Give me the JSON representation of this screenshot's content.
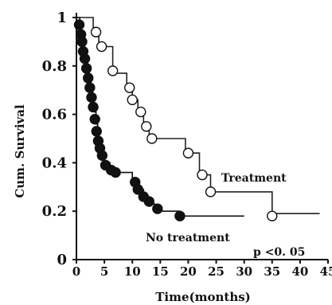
{
  "chart_data": {
    "type": "line",
    "xlabel": "Time(months)",
    "ylabel": "Cum. Survival",
    "xlim": [
      0,
      45
    ],
    "ylim": [
      0,
      1
    ],
    "x_ticks": [
      "0",
      "5",
      "10",
      "15",
      "20",
      "25",
      "30",
      "35",
      "40",
      "45"
    ],
    "y_ticks": [
      "0",
      "0.2",
      "0.4",
      "0.6",
      "0.8",
      "1"
    ],
    "grid": false,
    "series": [
      {
        "name": "Treatment",
        "marker": "open-circle",
        "color": "#222222",
        "step_points": [
          [
            0,
            1.0
          ],
          [
            3.0,
            1.0
          ],
          [
            3.0,
            0.94
          ],
          [
            4.0,
            0.94
          ],
          [
            4.0,
            0.88
          ],
          [
            6.5,
            0.88
          ],
          [
            6.5,
            0.77
          ],
          [
            9.0,
            0.77
          ],
          [
            9.0,
            0.71
          ],
          [
            10.0,
            0.71
          ],
          [
            10.0,
            0.66
          ],
          [
            11.0,
            0.66
          ],
          [
            11.0,
            0.6
          ],
          [
            12.0,
            0.6
          ],
          [
            12.0,
            0.55
          ],
          [
            13.0,
            0.55
          ],
          [
            13.0,
            0.5
          ],
          [
            19.5,
            0.5
          ],
          [
            19.5,
            0.44
          ],
          [
            22.0,
            0.44
          ],
          [
            22.0,
            0.35
          ],
          [
            24.0,
            0.35
          ],
          [
            24.0,
            0.28
          ],
          [
            35.0,
            0.28
          ],
          [
            35.0,
            0.19
          ],
          [
            43.5,
            0.19
          ]
        ],
        "markers": [
          [
            3.5,
            0.94
          ],
          [
            4.5,
            0.88
          ],
          [
            6.5,
            0.78
          ],
          [
            9.5,
            0.71
          ],
          [
            10.0,
            0.66
          ],
          [
            11.5,
            0.61
          ],
          [
            12.5,
            0.55
          ],
          [
            13.5,
            0.5
          ],
          [
            20.0,
            0.44
          ],
          [
            22.5,
            0.35
          ],
          [
            24.0,
            0.28
          ],
          [
            35.0,
            0.18
          ]
        ]
      },
      {
        "name": "No treatment",
        "marker": "filled-circle",
        "color": "#111111",
        "step_points": [
          [
            0,
            1.0
          ],
          [
            0.6,
            1.0
          ],
          [
            0.6,
            0.95
          ],
          [
            0.9,
            0.95
          ],
          [
            0.9,
            0.91
          ],
          [
            1.1,
            0.91
          ],
          [
            1.1,
            0.88
          ],
          [
            1.4,
            0.88
          ],
          [
            1.4,
            0.84
          ],
          [
            1.7,
            0.84
          ],
          [
            1.7,
            0.81
          ],
          [
            2.0,
            0.81
          ],
          [
            2.0,
            0.77
          ],
          [
            2.3,
            0.77
          ],
          [
            2.3,
            0.73
          ],
          [
            2.6,
            0.73
          ],
          [
            2.6,
            0.69
          ],
          [
            2.9,
            0.69
          ],
          [
            2.9,
            0.65
          ],
          [
            3.2,
            0.65
          ],
          [
            3.2,
            0.61
          ],
          [
            3.5,
            0.61
          ],
          [
            3.5,
            0.56
          ],
          [
            3.8,
            0.56
          ],
          [
            3.8,
            0.51
          ],
          [
            4.1,
            0.51
          ],
          [
            4.1,
            0.47
          ],
          [
            4.4,
            0.47
          ],
          [
            4.4,
            0.44
          ],
          [
            5.0,
            0.44
          ],
          [
            5.0,
            0.4
          ],
          [
            6.0,
            0.4
          ],
          [
            6.0,
            0.37
          ],
          [
            7.0,
            0.37
          ],
          [
            7.0,
            0.36
          ],
          [
            10.0,
            0.36
          ],
          [
            10.0,
            0.33
          ],
          [
            11.0,
            0.33
          ],
          [
            11.0,
            0.29
          ],
          [
            12.0,
            0.29
          ],
          [
            12.0,
            0.26
          ],
          [
            13.0,
            0.26
          ],
          [
            13.0,
            0.23
          ],
          [
            14.0,
            0.23
          ],
          [
            14.0,
            0.2
          ],
          [
            18.5,
            0.2
          ],
          [
            18.5,
            0.18
          ],
          [
            30.0,
            0.18
          ]
        ],
        "markers": [
          [
            0.5,
            0.97
          ],
          [
            0.8,
            0.93
          ],
          [
            1.0,
            0.9
          ],
          [
            1.2,
            0.86
          ],
          [
            1.5,
            0.83
          ],
          [
            1.8,
            0.79
          ],
          [
            2.1,
            0.75
          ],
          [
            2.4,
            0.71
          ],
          [
            2.7,
            0.67
          ],
          [
            3.0,
            0.63
          ],
          [
            3.3,
            0.58
          ],
          [
            3.6,
            0.53
          ],
          [
            3.9,
            0.49
          ],
          [
            4.2,
            0.46
          ],
          [
            4.6,
            0.43
          ],
          [
            5.2,
            0.39
          ],
          [
            6.2,
            0.37
          ],
          [
            7.0,
            0.36
          ],
          [
            10.5,
            0.32
          ],
          [
            11.0,
            0.29
          ],
          [
            12.0,
            0.26
          ],
          [
            13.0,
            0.24
          ],
          [
            14.5,
            0.21
          ],
          [
            18.5,
            0.18
          ]
        ]
      }
    ],
    "annotations": {
      "treatment_label": "Treatment",
      "no_treatment_label": "No treatment",
      "p_value": "p <0. 05"
    }
  }
}
